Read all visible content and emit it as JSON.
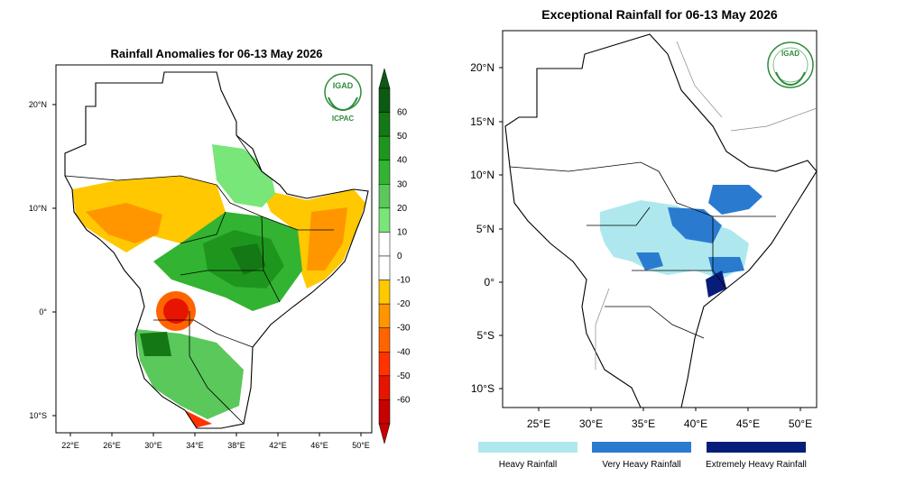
{
  "left_map": {
    "title": "Rainfall Anomalies for 06-13 May 2026",
    "lat_labels": [
      "20°N",
      "10°N",
      "0°",
      "10°S"
    ],
    "lon_labels": [
      "22°E",
      "26°E",
      "30°E",
      "34°E",
      "38°E",
      "42°E",
      "46°E",
      "50°E"
    ],
    "colorbar": {
      "ticks": [
        "60",
        "50",
        "40",
        "30",
        "20",
        "10",
        "0",
        "-10",
        "-20",
        "-30",
        "-40",
        "-50",
        "-60"
      ],
      "colors": [
        "#0c5a14",
        "#147814",
        "#1e961e",
        "#32b432",
        "#5ac85a",
        "#78e678",
        "#ffffff",
        "#ffffff",
        "#ffc800",
        "#ff9600",
        "#ff6400",
        "#ff3200",
        "#e61400",
        "#c80000"
      ]
    },
    "logo": {
      "top_text": "IGAD",
      "bottom_text": "ICPAC"
    }
  },
  "right_map": {
    "title": "Exceptional Rainfall for 06-13 May 2026",
    "lat_labels": [
      "20°N",
      "15°N",
      "10°N",
      "5°N",
      "0°",
      "5°S",
      "10°S"
    ],
    "lon_labels": [
      "25°E",
      "30°E",
      "35°E",
      "40°E",
      "45°E",
      "50°E"
    ],
    "legend": [
      {
        "label": "Heavy Rainfall",
        "color": "#aee8ee"
      },
      {
        "label": "Very Heavy Rainfall",
        "color": "#2a7bd0"
      },
      {
        "label": "Extremely Heavy Rainfall",
        "color": "#071d7a"
      }
    ],
    "logo": {
      "top_text": "IGAD"
    }
  }
}
